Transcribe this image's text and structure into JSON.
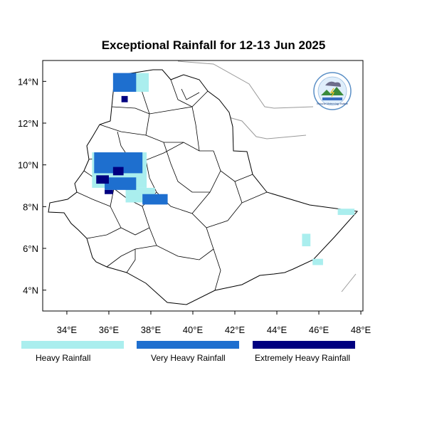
{
  "title": "Exceptional Rainfall for 12-13 Jun 2025",
  "axes": {
    "x_ticks": [
      {
        "value": 34,
        "label": "34°E"
      },
      {
        "value": 36,
        "label": "36°E"
      },
      {
        "value": 38,
        "label": "38°E"
      },
      {
        "value": 40,
        "label": "40°E"
      },
      {
        "value": 42,
        "label": "42°E"
      },
      {
        "value": 44,
        "label": "44°E"
      },
      {
        "value": 46,
        "label": "46°E"
      },
      {
        "value": 48,
        "label": "48°E"
      }
    ],
    "y_ticks": [
      {
        "value": 14,
        "label": "14°N"
      },
      {
        "value": 12,
        "label": "12°N"
      },
      {
        "value": 10,
        "label": "10°N"
      },
      {
        "value": 8,
        "label": "8°N"
      },
      {
        "value": 6,
        "label": "6°N"
      },
      {
        "value": 4,
        "label": "4°N"
      }
    ],
    "lon_range": [
      32.85,
      48.1
    ],
    "lat_range": [
      3.0,
      15.0
    ]
  },
  "legend": [
    {
      "label": "Heavy Rainfall",
      "color": "#aaeeee"
    },
    {
      "label": "Very Heavy Rainfall",
      "color": "#1e6fcf"
    },
    {
      "label": "Extremely Heavy Rainfall",
      "color": "#000080"
    }
  ],
  "logo_text": "Ethiopian Meteorology Institute",
  "rainfall_areas": [
    {
      "category": 0,
      "lon": 35.2,
      "lat": 8.9,
      "w": 2.6,
      "h": 1.7
    },
    {
      "category": 0,
      "lon": 36.8,
      "lat": 8.2,
      "w": 1.4,
      "h": 0.7
    },
    {
      "category": 0,
      "lon": 37.2,
      "lat": 13.5,
      "w": 0.7,
      "h": 0.9
    },
    {
      "category": 0,
      "lon": 45.2,
      "lat": 6.1,
      "w": 0.4,
      "h": 0.6
    },
    {
      "category": 0,
      "lon": 46.9,
      "lat": 7.6,
      "w": 0.8,
      "h": 0.3
    },
    {
      "category": 0,
      "lon": 45.7,
      "lat": 5.2,
      "w": 0.5,
      "h": 0.3
    },
    {
      "category": 1,
      "lon": 36.2,
      "lat": 13.5,
      "w": 1.1,
      "h": 0.9
    },
    {
      "category": 1,
      "lon": 35.3,
      "lat": 9.6,
      "w": 2.3,
      "h": 1.0
    },
    {
      "category": 1,
      "lon": 37.6,
      "lat": 8.1,
      "w": 1.2,
      "h": 0.5
    },
    {
      "category": 1,
      "lon": 35.8,
      "lat": 8.8,
      "w": 1.5,
      "h": 0.6
    },
    {
      "category": 2,
      "lon": 35.4,
      "lat": 9.1,
      "w": 0.6,
      "h": 0.4
    },
    {
      "category": 2,
      "lon": 36.2,
      "lat": 9.5,
      "w": 0.5,
      "h": 0.4
    },
    {
      "category": 2,
      "lon": 36.6,
      "lat": 13.0,
      "w": 0.3,
      "h": 0.3
    },
    {
      "category": 2,
      "lon": 35.8,
      "lat": 8.6,
      "w": 0.4,
      "h": 0.2
    }
  ]
}
